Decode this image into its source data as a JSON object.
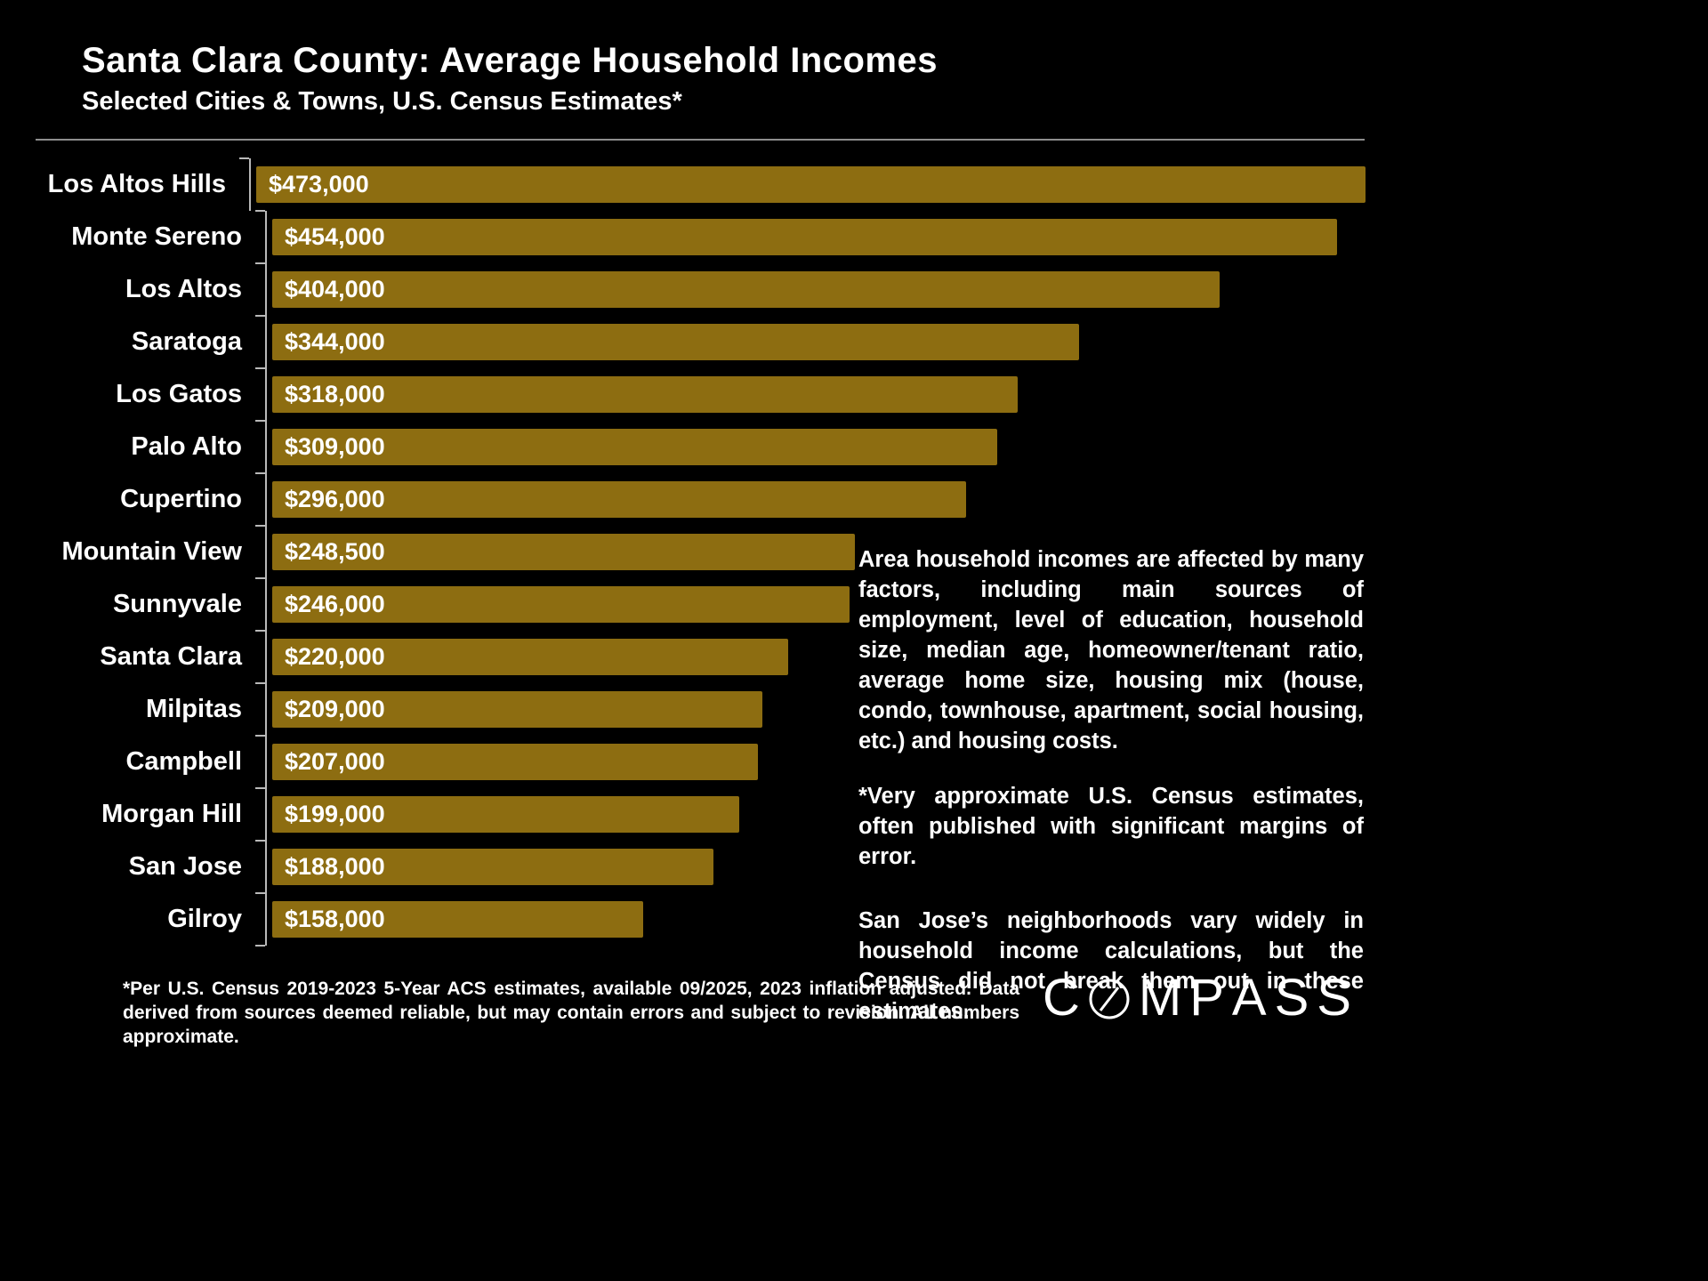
{
  "title": "Santa Clara County: Average Household Incomes",
  "subtitle": "Selected Cities & Towns, U.S. Census Estimates*",
  "chart_data": {
    "type": "bar",
    "orientation": "horizontal",
    "title": "Santa Clara County: Average Household Incomes",
    "xlabel": "",
    "ylabel": "",
    "xlim": [
      0,
      473000
    ],
    "grid": false,
    "legend": "none",
    "bar_color": "#8d6d11",
    "categories": [
      "Los Altos Hills",
      "Monte Sereno",
      "Los Altos",
      "Saratoga",
      "Los Gatos",
      "Palo Alto",
      "Cupertino",
      "Mountain View",
      "Sunnyvale",
      "Santa Clara",
      "Milpitas",
      "Campbell",
      "Morgan Hill",
      "San Jose",
      "Gilroy"
    ],
    "values": [
      473000,
      454000,
      404000,
      344000,
      318000,
      309000,
      296000,
      248500,
      246000,
      220000,
      209000,
      207000,
      199000,
      188000,
      158000
    ],
    "value_labels": [
      "$473,000",
      "$454,000",
      "$404,000",
      "$344,000",
      "$318,000",
      "$309,000",
      "$296,000",
      "$248,500",
      "$246,000",
      "$220,000",
      "$209,000",
      "$207,000",
      "$199,000",
      "$188,000",
      "$158,000"
    ]
  },
  "notes": {
    "para1": "Area household incomes are affected by many factors, including main sources of employment, level of education, household size, median age, homeowner/tenant ratio, average home size, housing mix (house, condo, townhouse, apartment, social housing, etc.) and housing costs.",
    "para2": "*Very approximate U.S. Census estimates, often published with significant margins of error.",
    "para3": "San Jose’s neighborhoods vary widely in household income calculations, but the Census did not break them out in these estimates."
  },
  "footnote": "*Per U.S. Census 2019-2023 5-Year ACS estimates, available 09/2025, 2023 inflation adjusted. Data derived from sources deemed reliable, but may contain errors and subject to revision. All numbers approximate.",
  "logo": {
    "text": "COMPASS"
  }
}
